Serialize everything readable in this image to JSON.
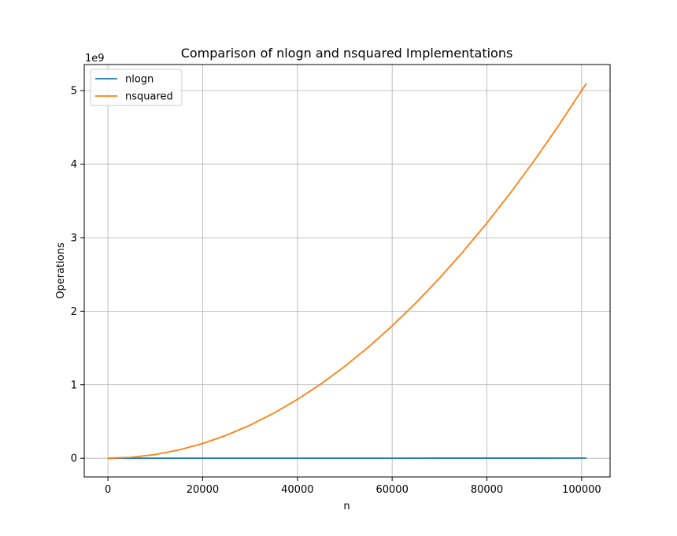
{
  "chart_data": {
    "type": "line",
    "title": "Comparison of nlogn and nsquared Implementations",
    "xlabel": "n",
    "ylabel": "Operations",
    "y_offset_label": "1e9",
    "xlim": [
      -5000,
      106000
    ],
    "ylim": [
      -0.255,
      5.355
    ],
    "y_scale_factor": 1000000000,
    "xticks": [
      0,
      20000,
      40000,
      60000,
      80000,
      100000
    ],
    "xtick_labels": [
      "0",
      "20000",
      "40000",
      "60000",
      "80000",
      "100000"
    ],
    "yticks": [
      0,
      1,
      2,
      3,
      4,
      5
    ],
    "ytick_labels": [
      "0",
      "1",
      "2",
      "3",
      "4",
      "5"
    ],
    "grid": true,
    "legend_position": "top-left",
    "series": [
      {
        "name": "nlogn",
        "color": "#1f77b4",
        "x": [
          0,
          10000,
          20000,
          30000,
          40000,
          50000,
          60000,
          70000,
          80000,
          90000,
          101000
        ],
        "y": [
          0,
          0.00013,
          0.00029,
          0.00045,
          0.00061,
          0.00078,
          0.00095,
          0.00113,
          0.0013,
          0.00148,
          0.00168
        ]
      },
      {
        "name": "nsquared",
        "color": "#ff7f0e",
        "x": [
          0,
          5000,
          10000,
          15000,
          20000,
          25000,
          30000,
          35000,
          40000,
          45000,
          50000,
          55000,
          60000,
          65000,
          70000,
          75000,
          80000,
          85000,
          90000,
          95000,
          101000
        ],
        "y": [
          0,
          0.0125,
          0.05,
          0.1125,
          0.2,
          0.3125,
          0.45,
          0.6125,
          0.8,
          1.0125,
          1.25,
          1.5125,
          1.8,
          2.1125,
          2.45,
          2.8125,
          3.2,
          3.6125,
          4.05,
          4.5125,
          5.1
        ]
      }
    ]
  }
}
